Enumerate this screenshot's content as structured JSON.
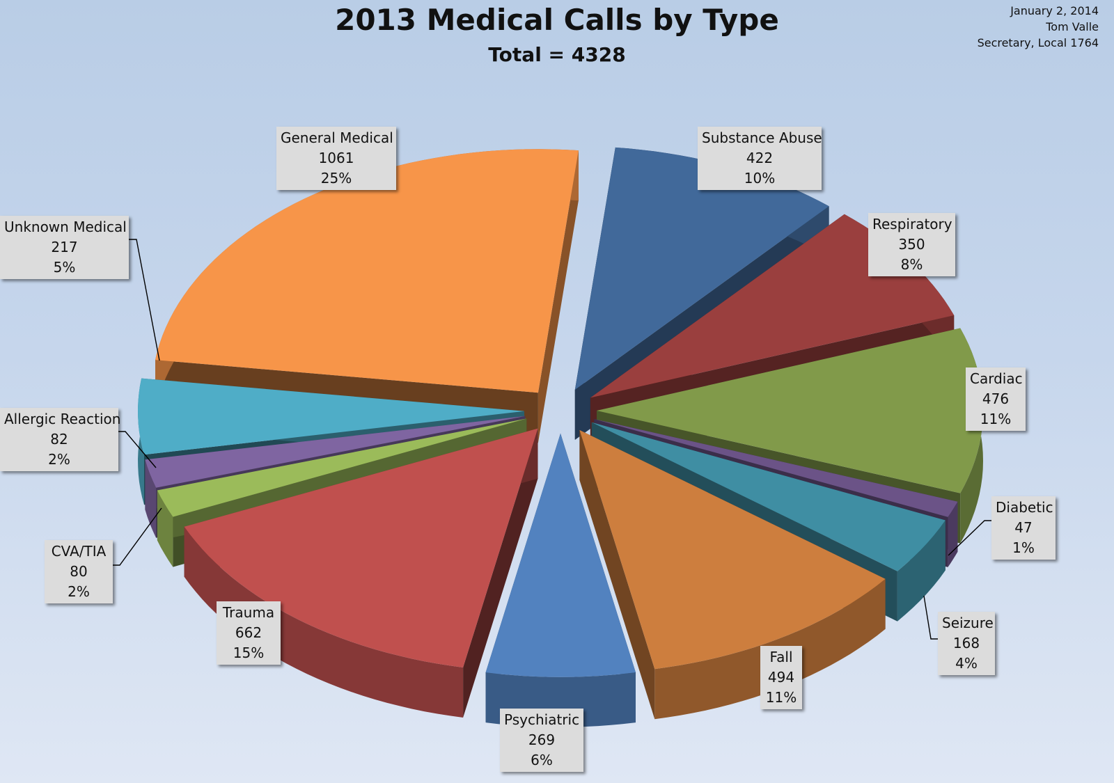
{
  "header": {
    "title": "2013 Medical Calls by Type",
    "subtitle": "Total = 4328",
    "date": "January 2, 2014",
    "author": "Tom Valle",
    "author_role": "Secretary, Local 1764"
  },
  "chart_data": {
    "type": "pie",
    "style": "3d exploded",
    "title": "2013 Medical Calls by Type",
    "subtitle": "Total = 4328",
    "total": 4328,
    "slices": [
      {
        "label": "Substance Abuse",
        "value": 422,
        "percent": "10%",
        "color": "#41699a"
      },
      {
        "label": "Respiratory",
        "value": 350,
        "percent": "8%",
        "color": "#9a3f3e"
      },
      {
        "label": "Cardiac",
        "value": 476,
        "percent": "11%",
        "color": "#819a4a"
      },
      {
        "label": "Diabetic",
        "value": 47,
        "percent": "1%",
        "color": "#6b5387"
      },
      {
        "label": "Seizure",
        "value": 168,
        "percent": "4%",
        "color": "#3f8ea3"
      },
      {
        "label": "Fall",
        "value": 494,
        "percent": "11%",
        "color": "#cd7e3e"
      },
      {
        "label": "Psychiatric",
        "value": 269,
        "percent": "6%",
        "color": "#5282bf"
      },
      {
        "label": "Trauma",
        "value": 662,
        "percent": "15%",
        "color": "#c0504e"
      },
      {
        "label": "CVA/TIA",
        "value": 80,
        "percent": "2%",
        "color": "#9bbb5a"
      },
      {
        "label": "Allergic Reaction",
        "value": 82,
        "percent": "2%",
        "color": "#7f65a1"
      },
      {
        "label": "Unknown Medical",
        "value": 217,
        "percent": "5%",
        "color": "#4fadc7"
      },
      {
        "label": "General Medical",
        "value": 1061,
        "percent": "25%",
        "color": "#f79549"
      }
    ]
  }
}
